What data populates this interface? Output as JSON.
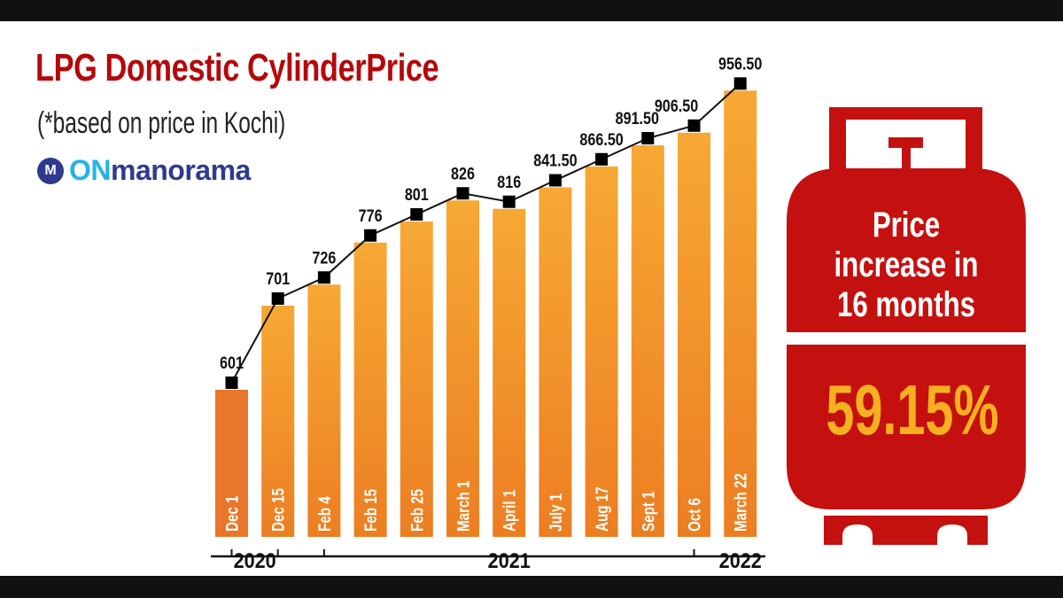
{
  "header": {
    "title": "LPG Domestic CylinderPrice",
    "subtitle": "(*based on price in Kochi)",
    "logo": {
      "mark": "M",
      "on": "ON",
      "name": "manorama"
    }
  },
  "callout": {
    "line1": "Price",
    "line2": "increase in",
    "line3": "16 months",
    "value": "59.15%",
    "icon": "gas-cylinder-icon"
  },
  "colors": {
    "bar": "#f39a2c",
    "bar_first": "#e8772a",
    "title": "#b5080b",
    "cylinder": "#c4110f",
    "callout_value": "#f7b01f"
  },
  "chart_data": {
    "type": "bar",
    "overlay": "line",
    "categories": [
      "Dec 1",
      "Dec 15",
      "Feb 4",
      "Feb 15",
      "Feb 25",
      "March 1",
      "April 1",
      "July 1",
      "Aug 17",
      "Sept 1",
      "Oct 6",
      "March 22"
    ],
    "values": [
      601,
      701,
      726,
      776,
      801,
      826,
      816,
      841.5,
      866.5,
      891.5,
      906.5,
      956.5
    ],
    "value_labels": [
      "601",
      "701",
      "726",
      "776",
      "801",
      "826",
      "816",
      "841.50",
      "866.50",
      "891.50",
      "906.50",
      "956.50"
    ],
    "year_labels": [
      {
        "label": "2020",
        "from": 0,
        "to": 1
      },
      {
        "label": "2021",
        "from": 2,
        "to": 10
      },
      {
        "label": "2022",
        "from": 11,
        "to": 11
      }
    ],
    "xlabel": "",
    "ylabel": "",
    "grid": false,
    "legend": "none"
  }
}
